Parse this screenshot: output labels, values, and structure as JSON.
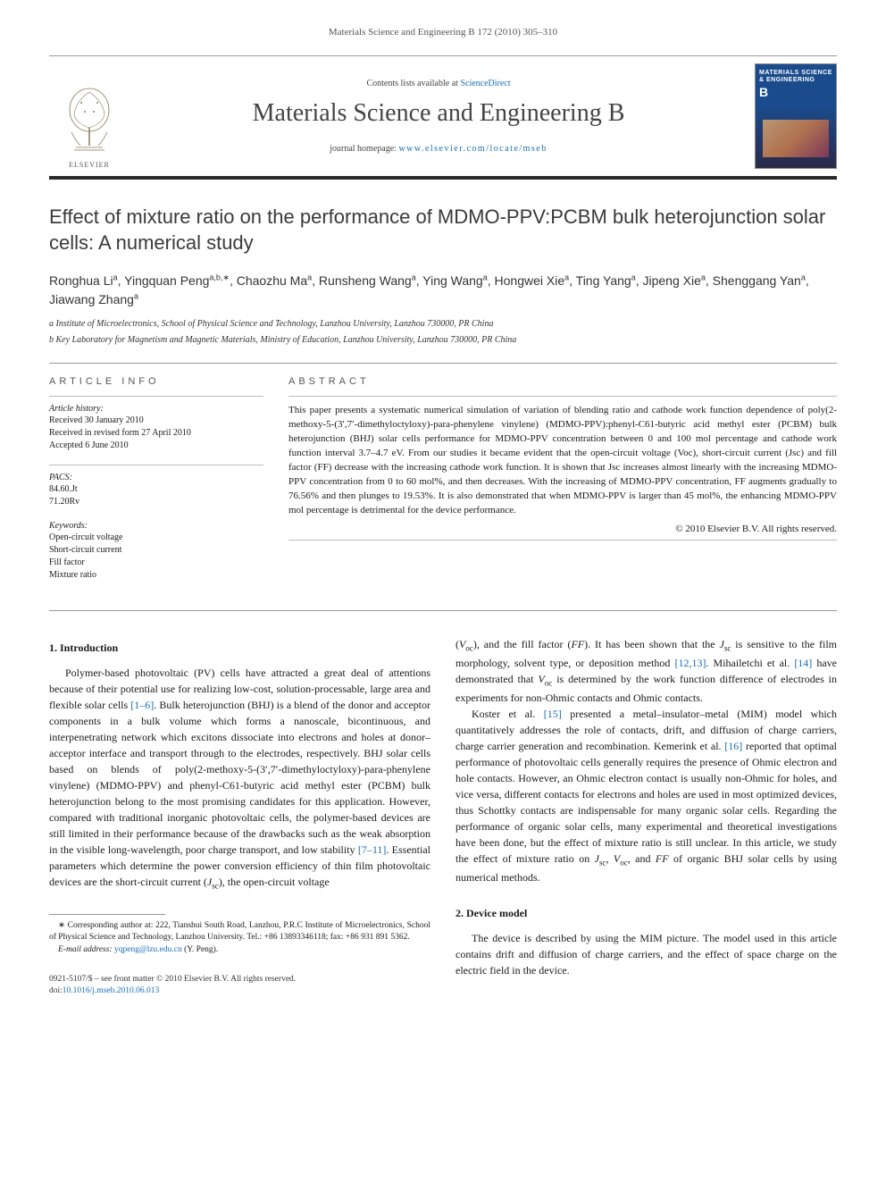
{
  "running_header": "Materials Science and Engineering B 172 (2010) 305–310",
  "masthead": {
    "contents_prefix": "Contents lists available at ",
    "contents_link": "ScienceDirect",
    "journal_name": "Materials Science and Engineering B",
    "homepage_label": "journal homepage: ",
    "homepage_url": "www.elsevier.com/locate/mseb",
    "publisher": "ELSEVIER",
    "cover_title": "MATERIALS SCIENCE & ENGINEERING",
    "cover_series": "B"
  },
  "article": {
    "title": "Effect of mixture ratio on the performance of MDMO-PPV:PCBM bulk heterojunction solar cells: A numerical study",
    "authors_html": "Ronghua Li<sup>a</sup>, Yingquan Peng<sup>a,b,∗</sup>, Chaozhu Ma<sup>a</sup>, Runsheng Wang<sup>a</sup>, Ying Wang<sup>a</sup>, Hongwei Xie<sup>a</sup>, Ting Yang<sup>a</sup>, Jipeng Xie<sup>a</sup>, Shenggang Yan<sup>a</sup>, Jiawang Zhang<sup>a</sup>",
    "affiliations": [
      "a Institute of Microelectronics, School of Physical Science and Technology, Lanzhou University, Lanzhou 730000, PR China",
      "b Key Laboratory for Magnetism and Magnetic Materials, Ministry of Education, Lanzhou University, Lanzhou 730000, PR China"
    ]
  },
  "article_info": {
    "heading": "ARTICLE INFO",
    "history_label": "Article history:",
    "history": [
      "Received 30 January 2010",
      "Received in revised form 27 April 2010",
      "Accepted 6 June 2010"
    ],
    "pacs_label": "PACS:",
    "pacs": [
      "84.60.Jt",
      "71.20Rv"
    ],
    "keywords_label": "Keywords:",
    "keywords": [
      "Open-circuit voltage",
      "Short-circuit current",
      "Fill factor",
      "Mixture ratio"
    ]
  },
  "abstract": {
    "heading": "ABSTRACT",
    "text": "This paper presents a systematic numerical simulation of variation of blending ratio and cathode work function dependence of poly(2-methoxy-5-(3′,7′-dimethyloctyloxy)-para-phenylene vinylene) (MDMO-PPV):phenyl-C61-butyric acid methyl ester (PCBM) bulk heterojunction (BHJ) solar cells performance for MDMO-PPV concentration between 0 and 100 mol percentage and cathode work function interval 3.7–4.7 eV. From our studies it became evident that the open-circuit voltage (Voc), short-circuit current (Jsc) and fill factor (FF) decrease with the increasing cathode work function. It is shown that Jsc increases almost linearly with the increasing MDMO-PPV concentration from 0 to 60 mol%, and then decreases. With the increasing of MDMO-PPV concentration, FF augments gradually to 76.56% and then plunges to 19.53%. It is also demonstrated that when MDMO-PPV is larger than 45 mol%, the enhancing MDMO-PPV mol percentage is detrimental for the device performance.",
    "copyright": "© 2010 Elsevier B.V. All rights reserved."
  },
  "body": {
    "sec1_head": "1.  Introduction",
    "sec1_p1": "Polymer-based photovoltaic (PV) cells have attracted a great deal of attentions because of their potential use for realizing low-cost, solution-processable, large area and flexible solar cells [1–6]. Bulk heterojunction (BHJ) is a blend of the donor and acceptor components in a bulk volume which forms a nanoscale, bicontinuous, and interpenetrating network which excitons dissociate into electrons and holes at donor–acceptor interface and transport through to the electrodes, respectively. BHJ solar cells based on blends of poly(2-methoxy-5-(3′,7′-dimethyloctyloxy)-para-phenylene vinylene) (MDMO-PPV) and phenyl-C61-butyric acid methyl ester (PCBM) bulk heterojunction belong to the most promising candidates for this application. However, compared with traditional inorganic photovoltaic cells, the polymer-based devices are still limited in their performance because of the drawbacks such as the weak absorption in the visible long-wavelength, poor charge transport, and low stability [7–11]. Essential parameters which determine the power conversion efficiency of thin film photovoltaic devices are the short-circuit current (Jsc), the open-circuit voltage",
    "sec1_p2": "(Voc), and the fill factor (FF). It has been shown that the Jsc is sensitive to the film morphology, solvent type, or deposition method [12,13]. Mihailetchi et al. [14] have demonstrated that Voc is determined by the work function difference of electrodes in experiments for non-Ohmic contacts and Ohmic contacts.",
    "sec1_p3": "Koster et al. [15] presented a metal–insulator–metal (MIM) model which quantitatively addresses the role of contacts, drift, and diffusion of charge carriers, charge carrier generation and recombination. Kemerink et al. [16] reported that optimal performance of photovoltaic cells generally requires the presence of Ohmic electron and hole contacts. However, an Ohmic electron contact is usually non-Ohmic for holes, and vice versa, different contacts for electrons and holes are used in most optimized devices, thus Schottky contacts are indispensable for many organic solar cells. Regarding the performance of organic solar cells, many experimental and theoretical investigations have been done, but the effect of mixture ratio is still unclear. In this article, we study the effect of mixture ratio on Jsc, Voc, and FF of organic BHJ solar cells by using numerical methods.",
    "sec2_head": "2.  Device model",
    "sec2_p1": "The device is described by using the MIM picture. The model used in this article contains drift and diffusion of charge carriers, and the effect of space charge on the electric field in the device."
  },
  "footnotes": {
    "corr": "∗ Corresponding author at: 222, Tianshui South Road, Lanzhou, P.R.C Institute of Microelectronics, School of Physical Science and Technology, Lanzhou University. Tel.: +86 13893346118; fax: +86 931 891 5362.",
    "email_label": "E-mail address: ",
    "email": "yqpeng@lzu.edu.cn",
    "email_who": " (Y. Peng)."
  },
  "footer": {
    "issn": "0921-5107/$ – see front matter © 2010 Elsevier B.V. All rights reserved.",
    "doi_label": "doi:",
    "doi": "10.1016/j.mseb.2010.06.013"
  },
  "colors": {
    "link": "#1a6db5",
    "text": "#1a1a1a",
    "rule": "#999999",
    "heavy_rule": "#2a2a2a",
    "cover_top": "#1a4b8c"
  }
}
